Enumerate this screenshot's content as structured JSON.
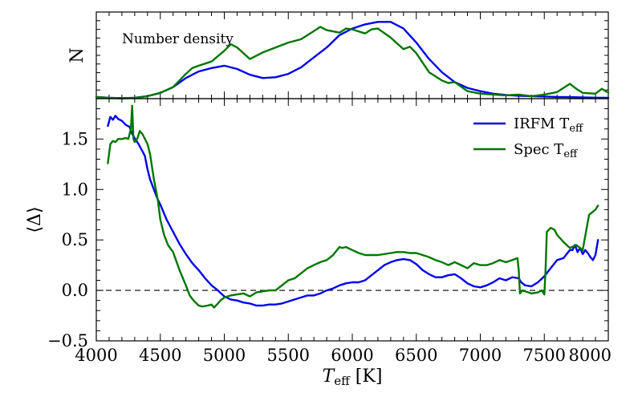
{
  "chart_data": [
    {
      "type": "line",
      "panel": "top",
      "annotation": "Number density",
      "ylabel": "N",
      "xlim": [
        4000,
        8000
      ],
      "ylim": [
        0,
        1.05
      ],
      "y_tick_labels_shown": false,
      "grid": false,
      "series": [
        {
          "name": "IRFM Teff",
          "color": "#0000ee",
          "x": [
            4000,
            4100,
            4200,
            4300,
            4400,
            4500,
            4600,
            4700,
            4800,
            4900,
            5000,
            5100,
            5200,
            5300,
            5400,
            5500,
            5600,
            5700,
            5800,
            5900,
            6000,
            6100,
            6200,
            6300,
            6400,
            6500,
            6600,
            6700,
            6800,
            6900,
            7000,
            7100,
            7200,
            7300,
            7400,
            7500,
            7600,
            7700,
            7800,
            7900,
            8000
          ],
          "y": [
            0.02,
            0.01,
            0.005,
            0.01,
            0.03,
            0.07,
            0.14,
            0.25,
            0.33,
            0.37,
            0.4,
            0.36,
            0.29,
            0.25,
            0.26,
            0.3,
            0.38,
            0.5,
            0.62,
            0.77,
            0.85,
            0.9,
            0.93,
            0.93,
            0.85,
            0.68,
            0.48,
            0.32,
            0.2,
            0.13,
            0.09,
            0.06,
            0.045,
            0.035,
            0.03,
            0.025,
            0.02,
            0.018,
            0.015,
            0.012,
            0.01
          ]
        },
        {
          "name": "Spec Teff",
          "color": "#007700",
          "x": [
            4000,
            4100,
            4200,
            4300,
            4400,
            4500,
            4600,
            4700,
            4750,
            4800,
            4900,
            5000,
            5050,
            5100,
            5200,
            5300,
            5400,
            5500,
            5600,
            5700,
            5750,
            5800,
            5900,
            5950,
            6000,
            6100,
            6150,
            6200,
            6300,
            6400,
            6450,
            6500,
            6600,
            6700,
            6750,
            6800,
            6900,
            7000,
            7100,
            7200,
            7300,
            7400,
            7500,
            7600,
            7700,
            7750,
            7800,
            7900,
            7950,
            8000
          ],
          "y": [
            0.02,
            0.01,
            0.005,
            0.01,
            0.03,
            0.07,
            0.14,
            0.3,
            0.37,
            0.4,
            0.45,
            0.58,
            0.66,
            0.62,
            0.48,
            0.56,
            0.62,
            0.68,
            0.72,
            0.82,
            0.87,
            0.83,
            0.8,
            0.85,
            0.84,
            0.79,
            0.84,
            0.85,
            0.74,
            0.6,
            0.63,
            0.55,
            0.32,
            0.22,
            0.19,
            0.2,
            0.09,
            0.06,
            0.05,
            0.04,
            0.05,
            0.03,
            0.05,
            0.08,
            0.18,
            0.12,
            0.07,
            0.06,
            0.12,
            0.07
          ]
        }
      ]
    },
    {
      "type": "line",
      "panel": "bottom",
      "xlabel_main": "T",
      "xlabel_sub": "eff",
      "xlabel_unit": " [K]",
      "ylabel": "⟨Δ⟩",
      "xlim": [
        4000,
        8000
      ],
      "ylim": [
        -0.5,
        1.9
      ],
      "x_ticks": [
        4000,
        4500,
        5000,
        5500,
        6000,
        6500,
        7000,
        7500,
        8000
      ],
      "x_tick_labels": [
        "4000",
        "4500",
        "5000",
        "5500",
        "6000",
        "6500",
        "7000",
        "7500",
        "8000"
      ],
      "y_ticks": [
        -0.5,
        0.0,
        0.5,
        1.0,
        1.5
      ],
      "y_tick_labels": [
        "−0.5",
        "0.0",
        "0.5",
        "1.0",
        "1.5"
      ],
      "reference_line": {
        "y": 0.0,
        "style": "dashed"
      },
      "legend_position": "top-right",
      "grid": false,
      "series": [
        {
          "name": "IRFM Teff",
          "legend_main": "IRFM T",
          "legend_sub": "eff",
          "color": "#0000ee",
          "x": [
            4090,
            4110,
            4130,
            4150,
            4170,
            4200,
            4230,
            4260,
            4280,
            4300,
            4330,
            4360,
            4380,
            4400,
            4420,
            4450,
            4480,
            4500,
            4550,
            4600,
            4650,
            4700,
            4750,
            4800,
            4850,
            4900,
            4950,
            5000,
            5050,
            5100,
            5150,
            5200,
            5250,
            5300,
            5350,
            5400,
            5450,
            5500,
            5550,
            5600,
            5650,
            5700,
            5750,
            5800,
            5850,
            5900,
            5950,
            6000,
            6050,
            6100,
            6150,
            6200,
            6250,
            6300,
            6350,
            6400,
            6450,
            6500,
            6550,
            6600,
            6650,
            6700,
            6750,
            6800,
            6850,
            6900,
            6950,
            7000,
            7050,
            7100,
            7150,
            7200,
            7250,
            7300,
            7320,
            7350,
            7400,
            7450,
            7500,
            7550,
            7600,
            7650,
            7700,
            7720,
            7740,
            7760,
            7780,
            7800,
            7820,
            7840,
            7860,
            7880,
            7900,
            7920
          ],
          "y": [
            1.63,
            1.72,
            1.69,
            1.73,
            1.7,
            1.68,
            1.64,
            1.62,
            1.55,
            1.51,
            1.45,
            1.38,
            1.33,
            1.2,
            1.1,
            1.0,
            0.9,
            0.85,
            0.7,
            0.58,
            0.46,
            0.36,
            0.27,
            0.2,
            0.12,
            0.05,
            0.0,
            -0.06,
            -0.09,
            -0.1,
            -0.12,
            -0.13,
            -0.15,
            -0.15,
            -0.14,
            -0.14,
            -0.13,
            -0.11,
            -0.09,
            -0.07,
            -0.05,
            -0.05,
            -0.03,
            0.0,
            0.02,
            0.05,
            0.07,
            0.08,
            0.08,
            0.1,
            0.15,
            0.2,
            0.25,
            0.28,
            0.3,
            0.31,
            0.3,
            0.26,
            0.2,
            0.16,
            0.13,
            0.13,
            0.15,
            0.16,
            0.12,
            0.07,
            0.04,
            0.03,
            0.05,
            0.08,
            0.12,
            0.1,
            0.13,
            0.12,
            0.08,
            0.05,
            0.04,
            0.08,
            0.14,
            0.22,
            0.3,
            0.32,
            0.4,
            0.4,
            0.45,
            0.38,
            0.42,
            0.36,
            0.4,
            0.37,
            0.33,
            0.3,
            0.35,
            0.5
          ]
        },
        {
          "name": "Spec Teff",
          "legend_main": "Spec T",
          "legend_sub": "eff",
          "color": "#007700",
          "x": [
            4090,
            4110,
            4130,
            4150,
            4170,
            4200,
            4230,
            4250,
            4270,
            4280,
            4290,
            4300,
            4320,
            4340,
            4360,
            4380,
            4400,
            4420,
            4450,
            4480,
            4500,
            4530,
            4560,
            4600,
            4650,
            4700,
            4730,
            4760,
            4800,
            4830,
            4870,
            4900,
            4920,
            4950,
            4970,
            5000,
            5050,
            5100,
            5150,
            5200,
            5250,
            5300,
            5350,
            5400,
            5450,
            5500,
            5550,
            5600,
            5650,
            5700,
            5750,
            5800,
            5850,
            5880,
            5900,
            5920,
            5950,
            6000,
            6050,
            6100,
            6150,
            6200,
            6250,
            6300,
            6350,
            6400,
            6450,
            6500,
            6550,
            6600,
            6650,
            6700,
            6750,
            6800,
            6850,
            6900,
            6950,
            7000,
            7050,
            7100,
            7150,
            7200,
            7250,
            7290,
            7300,
            7310,
            7330,
            7400,
            7450,
            7480,
            7500,
            7510,
            7520,
            7550,
            7580,
            7600,
            7650,
            7700,
            7750,
            7800,
            7850,
            7880,
            7900,
            7920
          ],
          "y": [
            1.26,
            1.45,
            1.48,
            1.47,
            1.5,
            1.5,
            1.51,
            1.5,
            1.6,
            1.83,
            1.5,
            1.47,
            1.5,
            1.58,
            1.55,
            1.5,
            1.45,
            1.35,
            1.1,
            0.9,
            0.7,
            0.55,
            0.45,
            0.38,
            0.2,
            0.05,
            -0.05,
            -0.1,
            -0.15,
            -0.16,
            -0.15,
            -0.14,
            -0.17,
            -0.13,
            -0.1,
            -0.07,
            -0.05,
            -0.04,
            -0.03,
            -0.06,
            -0.02,
            -0.01,
            0.0,
            0.0,
            0.05,
            0.1,
            0.12,
            0.17,
            0.22,
            0.25,
            0.28,
            0.3,
            0.35,
            0.4,
            0.43,
            0.42,
            0.43,
            0.4,
            0.37,
            0.35,
            0.35,
            0.35,
            0.36,
            0.37,
            0.38,
            0.38,
            0.37,
            0.37,
            0.35,
            0.33,
            0.3,
            0.28,
            0.25,
            0.28,
            0.25,
            0.22,
            0.27,
            0.25,
            0.25,
            0.27,
            0.3,
            0.28,
            0.3,
            0.32,
            0.2,
            -0.03,
            0.0,
            -0.03,
            -0.02,
            0.0,
            -0.04,
            0.2,
            0.58,
            0.62,
            0.6,
            0.55,
            0.48,
            0.42,
            0.45,
            0.4,
            0.75,
            0.78,
            0.8,
            0.84
          ]
        }
      ]
    }
  ]
}
